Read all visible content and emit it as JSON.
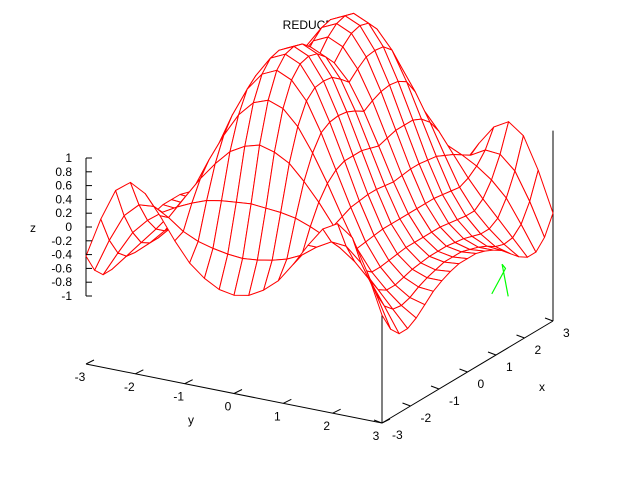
{
  "chart_data": {
    "type": "surface",
    "title": "REDUCE Plot",
    "xlabel": "x",
    "ylabel": "y",
    "zlabel": "z",
    "x_range": [
      -3,
      3
    ],
    "y_range": [
      -3,
      3
    ],
    "z_range": [
      -1,
      1
    ],
    "x_ticks": [
      "-3",
      "-2",
      "-1",
      "0",
      "1",
      "2",
      "3"
    ],
    "y_ticks": [
      "-3",
      "-2",
      "-1",
      "0",
      "1",
      "2",
      "3"
    ],
    "z_ticks": [
      "1",
      "0.8",
      "0.6",
      "0.4",
      "0.2",
      "0",
      "-0.2",
      "-0.4",
      "-0.6",
      "-0.8",
      "-1"
    ],
    "grid_size": 21,
    "surface_color": "#ff0000",
    "hidden_color": "#00ff00",
    "z": [
      [
        -0.48,
        -0.19,
        0.04,
        0.12,
        0.06,
        -0.08,
        -0.24,
        -0.38,
        -0.47,
        -0.53,
        -0.55,
        -0.53,
        -0.47,
        -0.38,
        -0.24,
        -0.08,
        0.06,
        0.12,
        0.04,
        -0.19,
        -0.48
      ],
      [
        -0.62,
        -0.38,
        -0.18,
        -0.08,
        -0.07,
        -0.13,
        -0.21,
        -0.26,
        -0.29,
        -0.31,
        -0.32,
        -0.31,
        -0.29,
        -0.26,
        -0.21,
        -0.13,
        -0.07,
        -0.08,
        -0.18,
        -0.38,
        -0.62
      ],
      [
        -0.69,
        -0.51,
        -0.34,
        -0.23,
        -0.15,
        -0.09,
        -0.04,
        0.0,
        0.02,
        0.03,
        0.04,
        0.03,
        0.02,
        0.0,
        -0.04,
        -0.09,
        -0.15,
        -0.23,
        -0.34,
        -0.51,
        -0.69
      ],
      [
        -0.69,
        -0.57,
        -0.45,
        -0.33,
        -0.2,
        -0.05,
        0.1,
        0.23,
        0.34,
        0.4,
        0.43,
        0.4,
        0.34,
        0.23,
        0.1,
        -0.05,
        -0.2,
        -0.33,
        -0.45,
        -0.57,
        -0.69
      ],
      [
        -0.65,
        -0.58,
        -0.49,
        -0.38,
        -0.23,
        -0.02,
        0.2,
        0.4,
        0.57,
        0.68,
        0.72,
        0.68,
        0.57,
        0.4,
        0.2,
        -0.02,
        -0.23,
        -0.38,
        -0.49,
        -0.58,
        -0.65
      ],
      [
        -0.59,
        -0.56,
        -0.49,
        -0.38,
        -0.22,
        0.01,
        0.26,
        0.51,
        0.72,
        0.85,
        0.9,
        0.85,
        0.72,
        0.51,
        0.26,
        0.01,
        -0.22,
        -0.38,
        -0.49,
        -0.56,
        -0.59
      ],
      [
        -0.53,
        -0.52,
        -0.47,
        -0.37,
        -0.21,
        0.02,
        0.29,
        0.55,
        0.78,
        0.93,
        0.98,
        0.93,
        0.78,
        0.55,
        0.29,
        0.02,
        -0.21,
        -0.37,
        -0.47,
        -0.52,
        -0.53
      ],
      [
        -0.49,
        -0.49,
        -0.45,
        -0.36,
        -0.2,
        0.03,
        0.29,
        0.56,
        0.79,
        0.95,
        1.0,
        0.95,
        0.79,
        0.56,
        0.29,
        0.03,
        -0.2,
        -0.36,
        -0.45,
        -0.49,
        -0.49
      ],
      [
        -0.46,
        -0.47,
        -0.44,
        -0.35,
        -0.2,
        0.03,
        0.29,
        0.55,
        0.78,
        0.93,
        0.98,
        0.93,
        0.78,
        0.55,
        0.29,
        0.03,
        -0.2,
        -0.35,
        -0.44,
        -0.47,
        -0.46
      ],
      [
        -0.44,
        -0.45,
        -0.43,
        -0.35,
        -0.2,
        0.02,
        0.27,
        0.52,
        0.73,
        0.87,
        0.92,
        0.87,
        0.73,
        0.52,
        0.27,
        0.02,
        -0.2,
        -0.35,
        -0.43,
        -0.45,
        -0.44
      ],
      [
        -0.44,
        -0.45,
        -0.43,
        -0.35,
        -0.2,
        0.01,
        0.25,
        0.48,
        0.67,
        0.79,
        0.83,
        0.79,
        0.67,
        0.48,
        0.25,
        0.01,
        -0.2,
        -0.35,
        -0.43,
        -0.45,
        -0.44
      ],
      [
        -0.44,
        -0.45,
        -0.43,
        -0.35,
        -0.2,
        0.02,
        0.27,
        0.52,
        0.73,
        0.87,
        0.92,
        0.87,
        0.73,
        0.52,
        0.27,
        0.02,
        -0.2,
        -0.35,
        -0.43,
        -0.45,
        -0.44
      ],
      [
        -0.46,
        -0.47,
        -0.44,
        -0.35,
        -0.2,
        0.03,
        0.29,
        0.55,
        0.78,
        0.93,
        0.98,
        0.93,
        0.78,
        0.55,
        0.29,
        0.03,
        -0.2,
        -0.35,
        -0.44,
        -0.47,
        -0.46
      ],
      [
        -0.49,
        -0.49,
        -0.45,
        -0.36,
        -0.2,
        0.03,
        0.29,
        0.56,
        0.79,
        0.95,
        1.0,
        0.95,
        0.79,
        0.56,
        0.29,
        0.03,
        -0.2,
        -0.36,
        -0.45,
        -0.49,
        -0.49
      ],
      [
        -0.53,
        -0.52,
        -0.47,
        -0.37,
        -0.21,
        0.02,
        0.29,
        0.55,
        0.78,
        0.93,
        0.98,
        0.93,
        0.78,
        0.55,
        0.29,
        0.02,
        -0.21,
        -0.37,
        -0.47,
        -0.52,
        -0.53
      ],
      [
        -0.59,
        -0.56,
        -0.49,
        -0.38,
        -0.22,
        0.01,
        0.26,
        0.51,
        0.72,
        0.85,
        0.9,
        0.85,
        0.72,
        0.51,
        0.26,
        0.01,
        -0.22,
        -0.38,
        -0.49,
        -0.56,
        -0.59
      ],
      [
        -0.65,
        -0.58,
        -0.49,
        -0.38,
        -0.23,
        -0.02,
        0.2,
        0.4,
        0.57,
        0.68,
        0.72,
        0.68,
        0.57,
        0.4,
        0.2,
        -0.02,
        -0.23,
        -0.38,
        -0.49,
        -0.58,
        -0.65
      ],
      [
        -0.69,
        -0.57,
        -0.45,
        -0.33,
        -0.2,
        -0.05,
        0.1,
        0.23,
        0.34,
        0.4,
        0.43,
        0.4,
        0.34,
        0.23,
        0.1,
        -0.05,
        -0.2,
        -0.33,
        -0.45,
        -0.57,
        -0.69
      ],
      [
        -0.69,
        -0.51,
        -0.34,
        -0.23,
        -0.15,
        -0.09,
        -0.04,
        0.0,
        0.02,
        0.03,
        0.04,
        0.03,
        0.02,
        0.0,
        -0.04,
        -0.09,
        -0.15,
        -0.23,
        -0.34,
        -0.51,
        -0.69
      ],
      [
        -0.62,
        -0.38,
        -0.18,
        -0.08,
        -0.07,
        -0.13,
        -0.21,
        -0.26,
        -0.29,
        -0.31,
        -0.32,
        -0.31,
        -0.29,
        -0.26,
        -0.21,
        -0.13,
        -0.07,
        -0.08,
        -0.18,
        -0.38,
        -0.62
      ],
      [
        -0.48,
        -0.19,
        0.04,
        0.12,
        0.06,
        -0.08,
        -0.24,
        -0.38,
        -0.47,
        -0.53,
        -0.55,
        -0.53,
        -0.47,
        -0.38,
        -0.24,
        -0.08,
        0.06,
        0.12,
        0.04,
        -0.19,
        -0.48
      ]
    ]
  }
}
